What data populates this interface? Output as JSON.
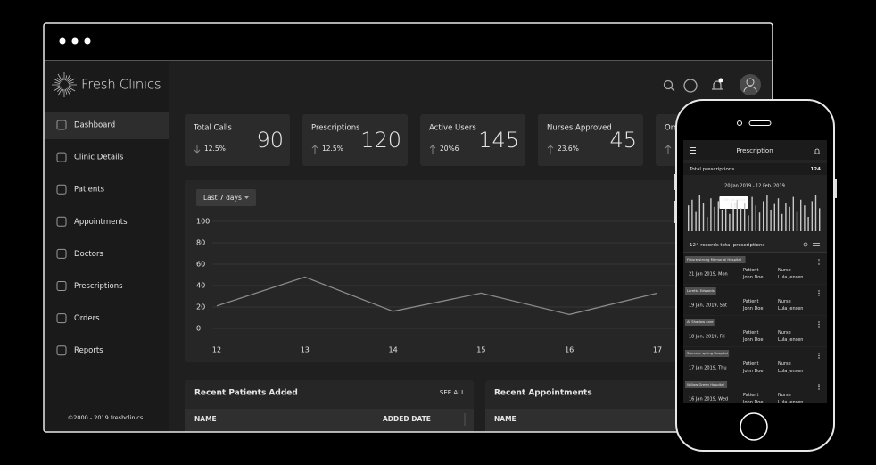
{
  "brand": "Fresh Clinics",
  "copyright": "©2000 - 2019 freshclinics",
  "nav": [
    "Dashboard",
    "Clinic Details",
    "Patients",
    "Appointments",
    "Doctors",
    "Prescriptions",
    "Orders",
    "Reports"
  ],
  "stats": [
    {
      "label": "Total Calls",
      "value": 90,
      "change": "12.5%",
      "direction": "down"
    },
    {
      "label": "Prescriptions",
      "value": 120,
      "change": "12.5%",
      "direction": "up"
    },
    {
      "label": "Active Users",
      "value": 145,
      "change": "20%6",
      "direction": "up"
    },
    {
      "label": "Nurses Approved",
      "value": 45,
      "change": "23.6%",
      "direction": "up"
    },
    {
      "label": "Orders",
      "direction": "up"
    }
  ],
  "chart_data": [
    {
      "type": "line",
      "filter": "Last 7 days",
      "categories": [
        "12",
        "13",
        "14",
        "15",
        "16",
        "17"
      ],
      "values": [
        21,
        48,
        16,
        33,
        13,
        33
      ],
      "ylim": [
        0,
        100
      ],
      "yticks": [
        0,
        20,
        40,
        60,
        80,
        100
      ],
      "color": "#8a8a8a",
      "grid": true
    },
    {
      "type": "bar",
      "title": "20 Jan 2019 - 12 Feb, 2019",
      "categories": [
        null,
        null,
        null,
        null,
        null,
        null,
        null,
        null,
        null,
        null,
        null,
        null,
        "20th Jan, 2019",
        null,
        null,
        null,
        null,
        null,
        null,
        null,
        null,
        null,
        null,
        null,
        null,
        null,
        null,
        null,
        null,
        null,
        null,
        null,
        null,
        null,
        null,
        null
      ],
      "values": [
        18,
        22,
        14,
        25,
        20,
        10,
        23,
        17,
        21,
        15,
        24,
        12,
        19,
        22,
        16,
        20,
        11,
        24,
        18,
        13,
        21,
        25,
        15,
        19,
        23,
        12,
        20,
        17,
        24,
        14,
        22,
        18,
        10,
        21,
        25,
        16
      ],
      "color": "#c8c8c8"
    }
  ],
  "patients_panel": {
    "title": "Recent Patients Added",
    "action": "SEE ALL",
    "columns": [
      "NAME",
      "ADDED DATE"
    ]
  },
  "appointments_panel": {
    "title": "Recent Appointments",
    "columns": [
      "NAME"
    ]
  },
  "phone": {
    "title": "Prescription",
    "total_label": "Total prescriptions",
    "total": 124,
    "records": "124 records total prescriptions",
    "items": [
      {
        "place": "Future strong Memorial Hospital",
        "date": "21 Jan 2019, Mon",
        "patient_label": "Patient",
        "patient": "John Doe",
        "nurse_label": "Nurse",
        "nurse": "Lula Jensen"
      },
      {
        "place": "Loretta Edwards",
        "date": "19 Jan, 2019, Sat",
        "patient_label": "Patient",
        "patient": "John Doe",
        "nurse_label": "Nurse",
        "nurse": "Lula Jensen"
      },
      {
        "place": "At Shadow care",
        "date": "18 Jan, 2019, Fri",
        "patient_label": "Patient",
        "patient": "John Doe",
        "nurse_label": "Nurse",
        "nurse": "Lula Jensen"
      },
      {
        "place": "Summer spring Hospital",
        "date": "17 Jan 2019, Thu",
        "patient_label": "Patient",
        "patient": "John Doe",
        "nurse_label": "Nurse",
        "nurse": "Lula Jensen"
      },
      {
        "place": "Willow Green Hospital",
        "date": "16 Jan 2019, Wed",
        "patient_label": "Patient",
        "patient": "John Doe",
        "nurse_label": "Nurse",
        "nurse": "Lula Jensen"
      }
    ]
  }
}
